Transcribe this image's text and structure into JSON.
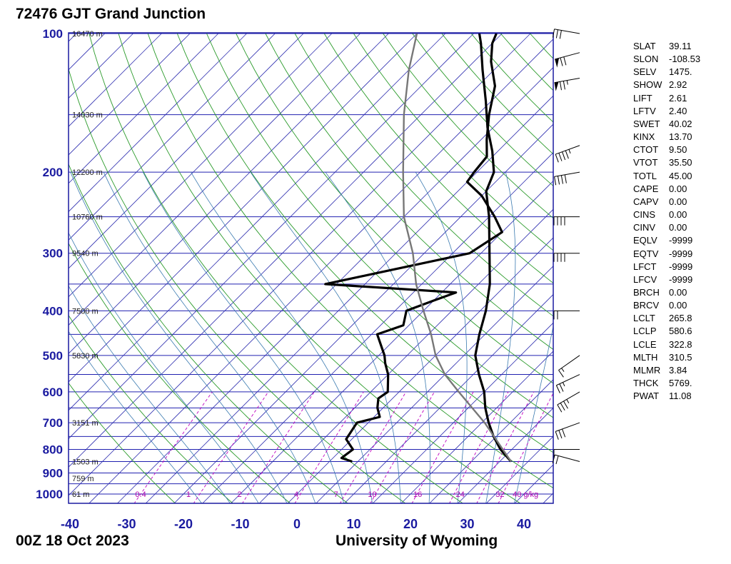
{
  "title": "72476 GJT Grand Junction",
  "footer": {
    "date": "00Z 18 Oct 2023",
    "source": "University of Wyoming"
  },
  "chart_data": {
    "type": "line",
    "y_axis": {
      "scale": "log",
      "pressure_labels": [
        "100",
        "200",
        "300",
        "400",
        "500",
        "600",
        "700",
        "800",
        "900",
        "1000"
      ],
      "range": [
        100,
        1050
      ]
    },
    "x_axis": {
      "tick_labels": [
        "-40",
        "-30",
        "-20",
        "-10",
        "0",
        "10",
        "20",
        "30",
        "40"
      ],
      "range": [
        -40,
        45
      ]
    },
    "height_labels": [
      {
        "p": 100,
        "label": "16470 m"
      },
      {
        "p": 150,
        "label": "14030 m"
      },
      {
        "p": 200,
        "label": "12200 m"
      },
      {
        "p": 250,
        "label": "10760 m"
      },
      {
        "p": 300,
        "label": "9540 m"
      },
      {
        "p": 400,
        "label": "7500 m"
      },
      {
        "p": 500,
        "label": "5830 m"
      },
      {
        "p": 700,
        "label": "3151 m"
      },
      {
        "p": 850,
        "label": "1503 m"
      },
      {
        "p": 925,
        "label": "759 m"
      },
      {
        "p": 1000,
        "label": "61 m"
      }
    ],
    "mixing_ratio_labels": [
      {
        "t": -28.5,
        "label": "0.4"
      },
      {
        "t": -19.5,
        "label": "1"
      },
      {
        "t": -10.5,
        "label": "2"
      },
      {
        "t": -0.5,
        "label": "4"
      },
      {
        "t": 6.5,
        "label": "7"
      },
      {
        "t": 12.5,
        "label": "10"
      },
      {
        "t": 20.5,
        "label": "16"
      },
      {
        "t": 28,
        "label": "24"
      },
      {
        "t": 35,
        "label": "32"
      },
      {
        "t": 38,
        "label": "40 g/kg"
      }
    ],
    "series": [
      {
        "role": "temperature",
        "points": [
          [
            850,
            32
          ],
          [
            800,
            28
          ],
          [
            750,
            24.5
          ],
          [
            700,
            21.2
          ],
          [
            650,
            18
          ],
          [
            600,
            15
          ],
          [
            550,
            11
          ],
          [
            500,
            7
          ],
          [
            450,
            4
          ],
          [
            400,
            1
          ],
          [
            350,
            -3
          ],
          [
            300,
            -8.5
          ],
          [
            250,
            -15
          ],
          [
            220,
            -20
          ],
          [
            200,
            -22
          ],
          [
            180,
            -26
          ],
          [
            160,
            -31
          ],
          [
            140,
            -36
          ],
          [
            120,
            -42
          ],
          [
            105,
            -47
          ],
          [
            100,
            -49
          ]
        ]
      },
      {
        "role": "dewpoint",
        "points": [
          [
            850,
            4
          ],
          [
            835,
            1.5
          ],
          [
            800,
            2
          ],
          [
            760,
            -1
          ],
          [
            700,
            -2
          ],
          [
            680,
            1
          ],
          [
            650,
            -1
          ],
          [
            620,
            -2.5
          ],
          [
            600,
            -2
          ],
          [
            550,
            -5
          ],
          [
            520,
            -7.5
          ],
          [
            500,
            -9
          ],
          [
            450,
            -14
          ],
          [
            430,
            -11
          ],
          [
            400,
            -13
          ],
          [
            380,
            -10
          ],
          [
            365,
            -7.5
          ],
          [
            350,
            -32
          ],
          [
            300,
            -12
          ],
          [
            270,
            -10
          ],
          [
            250,
            -14
          ],
          [
            225,
            -20
          ],
          [
            210,
            -25
          ],
          [
            200,
            -25.5
          ],
          [
            185,
            -26
          ],
          [
            170,
            -29
          ],
          [
            150,
            -33
          ],
          [
            130,
            -37
          ],
          [
            115,
            -42
          ],
          [
            105,
            -45
          ],
          [
            100,
            -46
          ]
        ]
      },
      {
        "role": "parcel",
        "points": [
          [
            850,
            32
          ],
          [
            700,
            20.5
          ],
          [
            600,
            10.5
          ],
          [
            550,
            5
          ],
          [
            500,
            0
          ],
          [
            450,
            -4.5
          ],
          [
            400,
            -10
          ],
          [
            350,
            -16
          ],
          [
            300,
            -22
          ],
          [
            250,
            -30
          ],
          [
            200,
            -38
          ],
          [
            150,
            -48
          ],
          [
            120,
            -55
          ],
          [
            100,
            -60
          ]
        ]
      }
    ],
    "wind_barbs": [
      {
        "p": 850,
        "dir": 285,
        "spd": 20
      },
      {
        "p": 800,
        "dir": 270,
        "spd": 10
      },
      {
        "p": 700,
        "dir": 250,
        "spd": 30
      },
      {
        "p": 600,
        "dir": 240,
        "spd": 35
      },
      {
        "p": 550,
        "dir": 245,
        "spd": 25
      },
      {
        "p": 500,
        "dir": 235,
        "spd": 15
      },
      {
        "p": 400,
        "dir": 270,
        "spd": 20
      },
      {
        "p": 300,
        "dir": 270,
        "spd": 40
      },
      {
        "p": 250,
        "dir": 270,
        "spd": 40
      },
      {
        "p": 200,
        "dir": 260,
        "spd": 40
      },
      {
        "p": 175,
        "dir": 250,
        "spd": 45
      },
      {
        "p": 125,
        "dir": 260,
        "spd": 75
      },
      {
        "p": 110,
        "dir": 255,
        "spd": 70
      },
      {
        "p": 100,
        "dir": 280,
        "spd": 30
      }
    ]
  },
  "indices": [
    {
      "k": "SLAT",
      "v": "39.11"
    },
    {
      "k": "SLON",
      "v": "-108.53"
    },
    {
      "k": "SELV",
      "v": "1475."
    },
    {
      "k": "SHOW",
      "v": "2.92"
    },
    {
      "k": "LIFT",
      "v": "2.61"
    },
    {
      "k": "LFTV",
      "v": "2.40"
    },
    {
      "k": "SWET",
      "v": "40.02"
    },
    {
      "k": "KINX",
      "v": "13.70"
    },
    {
      "k": "CTOT",
      "v": "9.50"
    },
    {
      "k": "VTOT",
      "v": "35.50"
    },
    {
      "k": "TOTL",
      "v": "45.00"
    },
    {
      "k": "CAPE",
      "v": "0.00"
    },
    {
      "k": "CAPV",
      "v": "0.00"
    },
    {
      "k": "CINS",
      "v": "0.00"
    },
    {
      "k": "CINV",
      "v": "0.00"
    },
    {
      "k": "EQLV",
      "v": "-9999"
    },
    {
      "k": "EQTV",
      "v": "-9999"
    },
    {
      "k": "LFCT",
      "v": "-9999"
    },
    {
      "k": "LFCV",
      "v": "-9999"
    },
    {
      "k": "BRCH",
      "v": "0.00"
    },
    {
      "k": "BRCV",
      "v": "0.00"
    },
    {
      "k": "LCLT",
      "v": "265.8"
    },
    {
      "k": "LCLP",
      "v": "580.6"
    },
    {
      "k": "LCLE",
      "v": "322.8"
    },
    {
      "k": "MLTH",
      "v": "310.5"
    },
    {
      "k": "MLMR",
      "v": "3.84"
    },
    {
      "k": "THCK",
      "v": "5769."
    },
    {
      "k": "PWAT",
      "v": "11.08"
    }
  ],
  "colors": {
    "isobar": "#2020b0",
    "isotherm": "#3030b0",
    "dry_adiabat": "#2a9a2a",
    "moist_adiabat": "#3a7ab0",
    "mixing_ratio": "#c000c0",
    "temperature": "#000000",
    "dewpoint": "#000000",
    "parcel": "#777777"
  }
}
